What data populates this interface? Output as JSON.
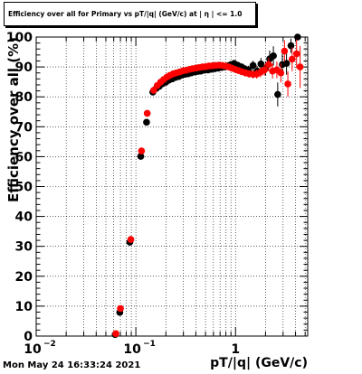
{
  "footer_timestamp": "Mon May 24 16:33:24 2021",
  "chart_data": {
    "type": "scatter",
    "title": "Efficiency over all for Primary vs pT/|q| (GeV/c) at | η | <= 1.0",
    "xlabel": "pT/|q| (GeV/c)",
    "ylabel": "Efficiency over all (%)",
    "xscale": "log",
    "xlim": [
      0.01,
      5.3
    ],
    "ylim": [
      0,
      100
    ],
    "x_ticks": [
      {
        "value": 0.01,
        "base": "10",
        "exp": "−2"
      },
      {
        "value": 0.1,
        "base": "10",
        "exp": "−1"
      },
      {
        "value": 1,
        "base": "1",
        "exp": ""
      }
    ],
    "y_ticks": [
      "0",
      "10",
      "20",
      "30",
      "40",
      "50",
      "60",
      "70",
      "80",
      "90",
      "100"
    ],
    "grid": true,
    "colors": {
      "series_black": "#000000",
      "series_red": "#ff0000"
    },
    "series": [
      {
        "color": "#000000",
        "points": [
          [
            0.062,
            0.5
          ],
          [
            0.069,
            7.9
          ],
          [
            0.087,
            31.4
          ],
          [
            0.112,
            60.1
          ],
          [
            0.128,
            71.5
          ],
          [
            0.148,
            81.6
          ],
          [
            0.16,
            82.8
          ],
          [
            0.172,
            83.5
          ],
          [
            0.185,
            84.4
          ],
          [
            0.2,
            84.9
          ],
          [
            0.215,
            85.6
          ],
          [
            0.232,
            86.0
          ],
          [
            0.25,
            86.5
          ],
          [
            0.27,
            86.8
          ],
          [
            0.29,
            87.3
          ],
          [
            0.31,
            87.5
          ],
          [
            0.335,
            87.7
          ],
          [
            0.36,
            88.0
          ],
          [
            0.39,
            88.3
          ],
          [
            0.42,
            88.5
          ],
          [
            0.45,
            88.6
          ],
          [
            0.49,
            88.9
          ],
          [
            0.53,
            89.0
          ],
          [
            0.57,
            89.2
          ],
          [
            0.62,
            89.4
          ],
          [
            0.67,
            89.6
          ],
          [
            0.72,
            89.8
          ],
          [
            0.78,
            90.0
          ],
          [
            0.84,
            90.4
          ],
          [
            0.9,
            90.8
          ],
          [
            0.97,
            91.2
          ],
          [
            1.05,
            90.6
          ],
          [
            1.15,
            90.0
          ],
          [
            1.25,
            89.3
          ],
          [
            1.35,
            89.0
          ],
          [
            1.5,
            90.5
          ],
          [
            1.65,
            88.6
          ],
          [
            1.8,
            91.0
          ],
          [
            2.0,
            89.5
          ],
          [
            2.2,
            92.7
          ],
          [
            2.4,
            93.7
          ],
          [
            2.65,
            80.8
          ],
          [
            2.95,
            90.8
          ],
          [
            3.25,
            91.2
          ],
          [
            3.6,
            97.1
          ],
          [
            4.2,
            100.0
          ]
        ],
        "errors": [
          0.3,
          1.0,
          1.0,
          1.0,
          1.0,
          0.8,
          0.8,
          0.8,
          0.7,
          0.7,
          0.7,
          0.7,
          0.7,
          0.7,
          0.7,
          0.7,
          0.7,
          0.7,
          0.8,
          0.8,
          0.8,
          0.8,
          0.8,
          0.8,
          0.8,
          0.9,
          0.9,
          0.9,
          1.0,
          1.0,
          1.0,
          1.1,
          1.2,
          1.3,
          1.4,
          1.6,
          1.8,
          2.0,
          2.4,
          2.8,
          3.2,
          4.0,
          3.6,
          3.8,
          2.4,
          0.5
        ]
      },
      {
        "color": "#ff0000",
        "points": [
          [
            0.063,
            0.8
          ],
          [
            0.07,
            9.2
          ],
          [
            0.089,
            32.3
          ],
          [
            0.114,
            61.9
          ],
          [
            0.13,
            74.5
          ],
          [
            0.151,
            82.2
          ],
          [
            0.164,
            83.8
          ],
          [
            0.177,
            84.9
          ],
          [
            0.19,
            85.8
          ],
          [
            0.205,
            86.6
          ],
          [
            0.22,
            87.2
          ],
          [
            0.237,
            87.7
          ],
          [
            0.255,
            88.0
          ],
          [
            0.275,
            88.3
          ],
          [
            0.297,
            88.7
          ],
          [
            0.32,
            88.9
          ],
          [
            0.345,
            89.2
          ],
          [
            0.37,
            89.4
          ],
          [
            0.4,
            89.6
          ],
          [
            0.43,
            89.8
          ],
          [
            0.465,
            90.0
          ],
          [
            0.5,
            90.1
          ],
          [
            0.54,
            90.3
          ],
          [
            0.585,
            90.4
          ],
          [
            0.63,
            90.5
          ],
          [
            0.68,
            90.6
          ],
          [
            0.735,
            90.5
          ],
          [
            0.79,
            90.3
          ],
          [
            0.855,
            90.0
          ],
          [
            0.92,
            89.6
          ],
          [
            0.99,
            89.2
          ],
          [
            1.07,
            88.8
          ],
          [
            1.16,
            88.4
          ],
          [
            1.26,
            88.0
          ],
          [
            1.37,
            87.7
          ],
          [
            1.5,
            87.5
          ],
          [
            1.63,
            87.6
          ],
          [
            1.78,
            88.2
          ],
          [
            1.95,
            89.0
          ],
          [
            2.15,
            90.8
          ],
          [
            2.35,
            88.6
          ],
          [
            2.6,
            89.0
          ],
          [
            2.85,
            88.0
          ],
          [
            3.1,
            95.3
          ],
          [
            3.35,
            84.3
          ],
          [
            3.7,
            92.6
          ],
          [
            4.1,
            94.4
          ],
          [
            4.45,
            90.0
          ]
        ],
        "errors": [
          0.3,
          1.0,
          1.0,
          1.0,
          1.0,
          0.8,
          0.8,
          0.7,
          0.7,
          0.7,
          0.7,
          0.7,
          0.7,
          0.7,
          0.7,
          0.7,
          0.7,
          0.7,
          0.7,
          0.7,
          0.7,
          0.7,
          0.8,
          0.8,
          0.8,
          0.8,
          0.8,
          0.8,
          0.9,
          0.9,
          1.0,
          1.0,
          1.1,
          1.2,
          1.3,
          1.4,
          1.5,
          1.7,
          1.9,
          2.2,
          2.5,
          2.8,
          3.2,
          3.6,
          4.2,
          4.0,
          4.8,
          7.0
        ]
      }
    ]
  }
}
